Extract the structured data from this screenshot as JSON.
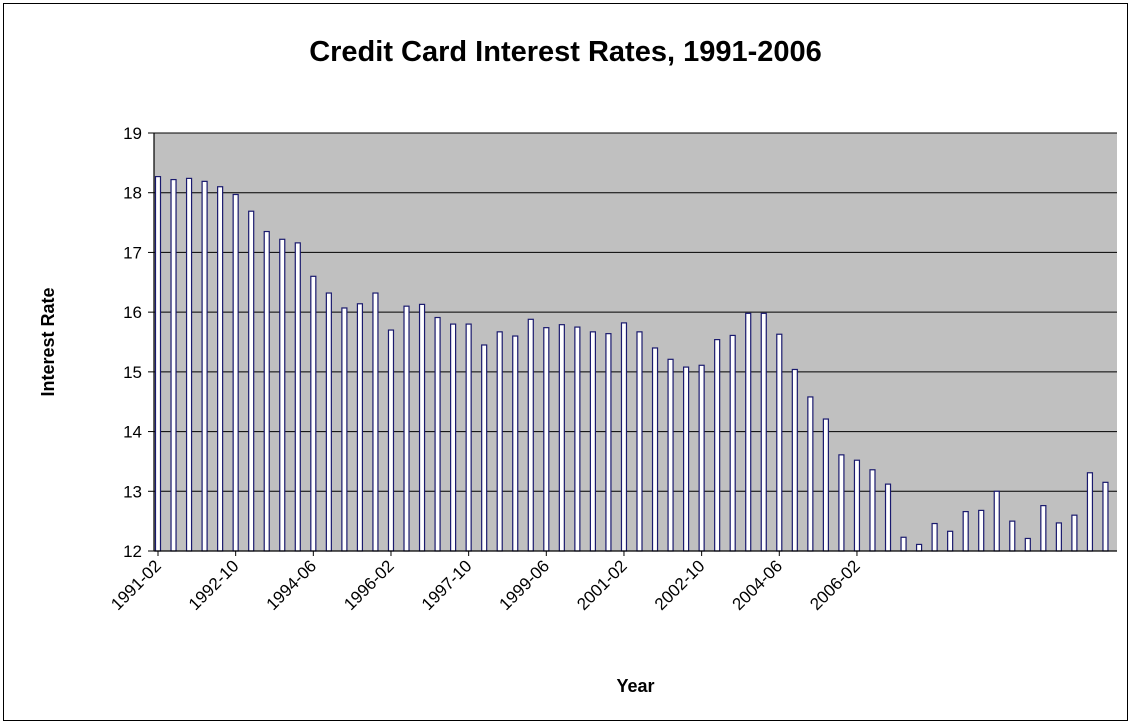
{
  "chart_data": {
    "type": "bar",
    "title": "Credit Card Interest Rates, 1991-2006",
    "xlabel": "Year",
    "ylabel": "Interest Rate",
    "ylim": [
      12,
      19
    ],
    "yticks": [
      12,
      13,
      14,
      15,
      16,
      17,
      18,
      19
    ],
    "grid": true,
    "x_tick_labels": [
      "1991-02",
      "1992-10",
      "1994-06",
      "1996-02",
      "1997-10",
      "1999-06",
      "2001-02",
      "2002-10",
      "2004-06",
      "2006-02"
    ],
    "x_tick_label_every": 5,
    "colors": {
      "plot_background": "#c0c0c0",
      "bar_fill": "#ffffff",
      "bar_outline": "#1a1a6e",
      "gridline": "#000000"
    },
    "series": [
      {
        "values": [
          18.27,
          18.22,
          18.24,
          18.19,
          18.1,
          17.97,
          17.69,
          17.35,
          17.22,
          17.16,
          16.6,
          16.32,
          16.07,
          16.14,
          16.32,
          15.7,
          16.1,
          16.13,
          15.91,
          15.8,
          15.8,
          15.45,
          15.67,
          15.6,
          15.88,
          15.74,
          15.79,
          15.75,
          15.67,
          15.64,
          15.82,
          15.67,
          15.4,
          15.21,
          15.08,
          15.11,
          15.54,
          15.61,
          15.98,
          15.98,
          15.63,
          15.04,
          14.58,
          14.21,
          13.61,
          13.52,
          13.36,
          13.12,
          12.23,
          12.11,
          12.46,
          12.33,
          12.66,
          12.68,
          13.0,
          12.5,
          12.21,
          12.76,
          12.47,
          12.6,
          13.31,
          13.15
        ]
      }
    ]
  }
}
